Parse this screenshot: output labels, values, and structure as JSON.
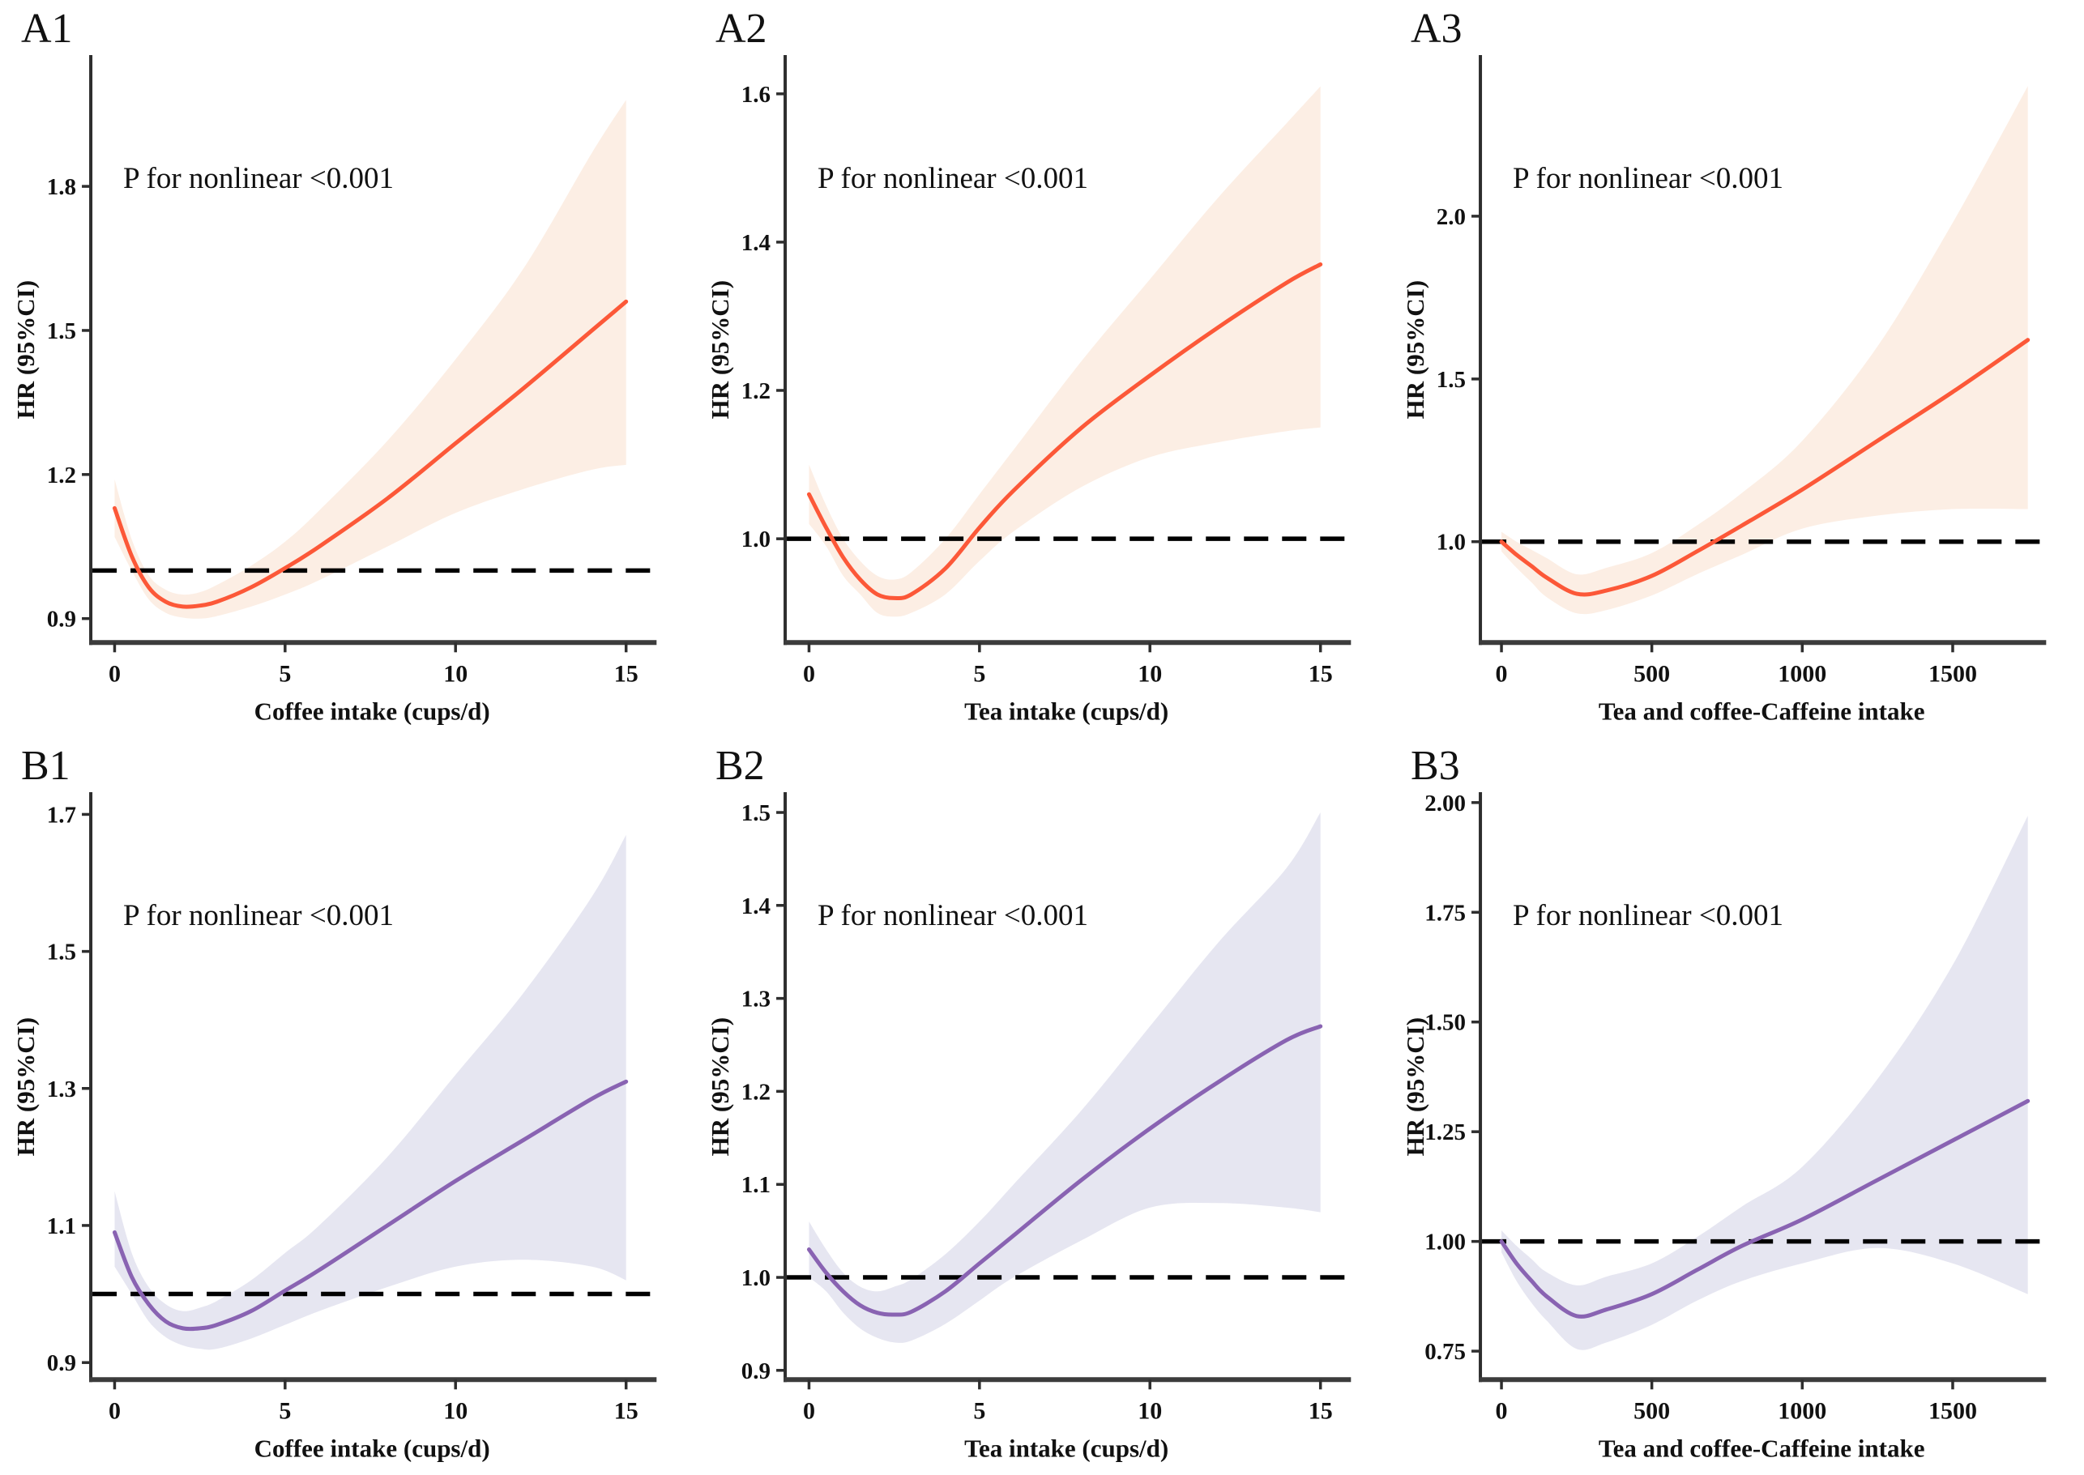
{
  "figure": {
    "background": "#ffffff",
    "annotation_text": "P for nonlinear <0.001",
    "ylabel": "HR (95%CI)",
    "reference_line_value": 1.0
  },
  "colors": {
    "orange_line": "#FC5838",
    "orange_band": "#FCEEE4",
    "purple_line": "#8963B2",
    "purple_band": "#E6E6F1",
    "axis": "#2e2e2e",
    "x_axis": "#3c3c3c",
    "text": "#111111",
    "reference_line": "#000000"
  },
  "chart_data": [
    {
      "id": "A1",
      "type": "line",
      "panel_label": "A1",
      "palette": "orange",
      "annotation": "P for nonlinear <0.001",
      "xlabel": "Coffee  intake (cups/d)",
      "ylabel": "HR (95%CI)",
      "x_ticks": [
        0,
        5,
        10,
        15
      ],
      "x_tick_labels": [
        "0",
        "5",
        "10",
        "15"
      ],
      "y_ticks": [
        0.9,
        1.2,
        1.5,
        1.8
      ],
      "y_tick_labels": [
        "0.9",
        "1.2",
        "1.5",
        "1.8"
      ],
      "xlim": [
        -0.7,
        15.8
      ],
      "ylim": [
        0.85,
        2.07
      ],
      "reference_line": 1.0,
      "legend": "off",
      "grid": "off",
      "x": [
        0,
        0.5,
        1,
        1.5,
        2,
        2.5,
        3,
        4,
        5,
        6,
        8,
        10,
        12,
        14,
        15
      ],
      "hr": [
        1.13,
        1.03,
        0.965,
        0.935,
        0.925,
        0.927,
        0.935,
        0.965,
        1.005,
        1.05,
        1.15,
        1.265,
        1.38,
        1.5,
        1.56
      ],
      "ci_lower": [
        1.07,
        1.0,
        0.94,
        0.912,
        0.902,
        0.9,
        0.905,
        0.925,
        0.95,
        0.98,
        1.05,
        1.12,
        1.17,
        1.21,
        1.22
      ],
      "ci_upper": [
        1.19,
        1.065,
        0.99,
        0.96,
        0.95,
        0.955,
        0.97,
        1.01,
        1.06,
        1.125,
        1.27,
        1.44,
        1.63,
        1.87,
        1.98
      ]
    },
    {
      "id": "A2",
      "type": "line",
      "panel_label": "A2",
      "palette": "orange",
      "annotation": "P for nonlinear <0.001",
      "xlabel": "Tea intake (cups/d)",
      "ylabel": "HR (95%CI)",
      "x_ticks": [
        0,
        5,
        10,
        15
      ],
      "x_tick_labels": [
        "0",
        "5",
        "10",
        "15"
      ],
      "y_ticks": [
        1.0,
        1.2,
        1.4,
        1.6
      ],
      "y_tick_labels": [
        "1.0",
        "1.2",
        "1.4",
        "1.6"
      ],
      "xlim": [
        -0.7,
        15.8
      ],
      "ylim": [
        0.86,
        1.65
      ],
      "reference_line": 1.0,
      "legend": "off",
      "grid": "off",
      "x": [
        0,
        0.5,
        1,
        1.5,
        2,
        2.5,
        3,
        4,
        5,
        6,
        8,
        10,
        12,
        14,
        15
      ],
      "hr": [
        1.06,
        1.015,
        0.975,
        0.945,
        0.925,
        0.92,
        0.925,
        0.96,
        1.015,
        1.065,
        1.15,
        1.22,
        1.285,
        1.345,
        1.37
      ],
      "ci_lower": [
        1.02,
        0.99,
        0.95,
        0.925,
        0.9,
        0.895,
        0.9,
        0.925,
        0.97,
        1.01,
        1.07,
        1.11,
        1.13,
        1.145,
        1.15
      ],
      "ci_upper": [
        1.1,
        1.045,
        1.0,
        0.97,
        0.95,
        0.945,
        0.955,
        1.0,
        1.06,
        1.12,
        1.24,
        1.35,
        1.46,
        1.56,
        1.61
      ]
    },
    {
      "id": "A3",
      "type": "line",
      "panel_label": "A3",
      "palette": "orange",
      "annotation": "P for nonlinear <0.001",
      "xlabel": "Tea and coffee-Caffeine intake",
      "ylabel": "HR (95%CI)",
      "x_ticks": [
        0,
        500,
        1000,
        1500
      ],
      "x_tick_labels": [
        "0",
        "500",
        "1000",
        "1500"
      ],
      "y_ticks": [
        1.0,
        1.5,
        2.0
      ],
      "y_tick_labels": [
        "1.0",
        "1.5",
        "2.0"
      ],
      "xlim": [
        -70,
        1800
      ],
      "ylim": [
        0.69,
        2.49
      ],
      "reference_line": 1.0,
      "legend": "off",
      "grid": "off",
      "x": [
        0,
        50,
        100,
        150,
        250,
        350,
        500,
        650,
        800,
        1000,
        1250,
        1500,
        1750
      ],
      "hr": [
        1.0,
        0.96,
        0.925,
        0.89,
        0.84,
        0.85,
        0.895,
        0.97,
        1.05,
        1.16,
        1.31,
        1.46,
        1.62
      ],
      "ci_lower": [
        0.97,
        0.92,
        0.875,
        0.83,
        0.78,
        0.79,
        0.835,
        0.9,
        0.96,
        1.04,
        1.08,
        1.1,
        1.1
      ],
      "ci_upper": [
        1.03,
        1.0,
        0.975,
        0.95,
        0.9,
        0.92,
        0.965,
        1.05,
        1.15,
        1.31,
        1.6,
        1.98,
        2.4
      ]
    },
    {
      "id": "B1",
      "type": "line",
      "panel_label": "B1",
      "palette": "purple",
      "annotation": "P for nonlinear <0.001",
      "xlabel": "Coffee intake (cups/d)",
      "ylabel": "HR (95%CI)",
      "x_ticks": [
        0,
        5,
        10,
        15
      ],
      "x_tick_labels": [
        "0",
        "5",
        "10",
        "15"
      ],
      "y_ticks": [
        0.9,
        1.1,
        1.3,
        1.5,
        1.7
      ],
      "y_tick_labels": [
        "0.9",
        "1.1",
        "1.3",
        "1.5",
        "1.7"
      ],
      "xlim": [
        -0.7,
        15.8
      ],
      "ylim": [
        0.875,
        1.73
      ],
      "reference_line": 1.0,
      "legend": "off",
      "grid": "off",
      "x": [
        0,
        0.5,
        1,
        1.5,
        2,
        2.5,
        3,
        4,
        5,
        6,
        8,
        10,
        12,
        14,
        15
      ],
      "hr": [
        1.09,
        1.025,
        0.985,
        0.96,
        0.95,
        0.95,
        0.955,
        0.975,
        1.005,
        1.035,
        1.1,
        1.165,
        1.225,
        1.285,
        1.31
      ],
      "ci_lower": [
        1.04,
        1.0,
        0.96,
        0.937,
        0.925,
        0.92,
        0.92,
        0.935,
        0.955,
        0.975,
        1.01,
        1.04,
        1.05,
        1.04,
        1.02
      ],
      "ci_upper": [
        1.15,
        1.06,
        1.01,
        0.985,
        0.975,
        0.98,
        0.99,
        1.02,
        1.06,
        1.1,
        1.2,
        1.32,
        1.44,
        1.58,
        1.67
      ]
    },
    {
      "id": "B2",
      "type": "line",
      "panel_label": "B2",
      "palette": "purple",
      "annotation": "P for nonlinear <0.001",
      "xlabel": "Tea intake (cups/d)",
      "ylabel": "HR (95%CI)",
      "x_ticks": [
        0,
        5,
        10,
        15
      ],
      "x_tick_labels": [
        "0",
        "5",
        "10",
        "15"
      ],
      "y_ticks": [
        0.9,
        1.0,
        1.1,
        1.2,
        1.3,
        1.4,
        1.5
      ],
      "y_tick_labels": [
        "0.9",
        "1.0",
        "1.1",
        "1.2",
        "1.3",
        "1.4",
        "1.5"
      ],
      "xlim": [
        -0.7,
        15.8
      ],
      "ylim": [
        0.89,
        1.52
      ],
      "reference_line": 1.0,
      "legend": "off",
      "grid": "off",
      "x": [
        0,
        0.5,
        1,
        1.5,
        2,
        2.5,
        3,
        4,
        5,
        6,
        8,
        10,
        12,
        14,
        15
      ],
      "hr": [
        1.03,
        1.005,
        0.985,
        0.97,
        0.962,
        0.96,
        0.963,
        0.985,
        1.015,
        1.045,
        1.105,
        1.16,
        1.21,
        1.255,
        1.27
      ],
      "ci_lower": [
        1.0,
        0.985,
        0.962,
        0.945,
        0.935,
        0.93,
        0.932,
        0.95,
        0.975,
        1.0,
        1.04,
        1.075,
        1.08,
        1.075,
        1.07
      ],
      "ci_upper": [
        1.06,
        1.03,
        1.005,
        0.99,
        0.985,
        0.99,
        0.998,
        1.025,
        1.06,
        1.1,
        1.18,
        1.27,
        1.36,
        1.44,
        1.5
      ]
    },
    {
      "id": "B3",
      "type": "line",
      "panel_label": "B3",
      "palette": "purple",
      "annotation": "P for nonlinear <0.001",
      "xlabel": "Tea and coffee-Caffeine intake",
      "ylabel": "HR (95%CI)",
      "x_ticks": [
        0,
        500,
        1000,
        1500
      ],
      "x_tick_labels": [
        "0",
        "500",
        "1000",
        "1500"
      ],
      "y_ticks": [
        0.75,
        1.0,
        1.25,
        1.5,
        1.75,
        2.0
      ],
      "y_tick_labels": [
        "0.75",
        "1.00",
        "1.25",
        "1.50",
        "1.75",
        "2.00"
      ],
      "xlim": [
        -70,
        1800
      ],
      "ylim": [
        0.685,
        2.02
      ],
      "reference_line": 1.0,
      "legend": "off",
      "grid": "off",
      "x": [
        0,
        50,
        100,
        150,
        250,
        350,
        500,
        650,
        800,
        1000,
        1250,
        1500,
        1750
      ],
      "hr": [
        1.0,
        0.95,
        0.91,
        0.875,
        0.83,
        0.845,
        0.88,
        0.935,
        0.99,
        1.05,
        1.14,
        1.23,
        1.32
      ],
      "ci_lower": [
        0.975,
        0.91,
        0.86,
        0.82,
        0.755,
        0.77,
        0.81,
        0.865,
        0.91,
        0.95,
        0.985,
        0.95,
        0.88
      ],
      "ci_upper": [
        1.025,
        0.99,
        0.96,
        0.93,
        0.9,
        0.92,
        0.95,
        1.01,
        1.08,
        1.17,
        1.37,
        1.63,
        1.97
      ]
    }
  ]
}
